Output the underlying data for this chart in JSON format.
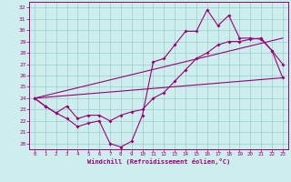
{
  "xlabel": "Windchill (Refroidissement éolien,°C)",
  "xlim": [
    -0.5,
    23.5
  ],
  "ylim": [
    19.5,
    32.5
  ],
  "xticks": [
    0,
    1,
    2,
    3,
    4,
    5,
    6,
    7,
    8,
    9,
    10,
    11,
    12,
    13,
    14,
    15,
    16,
    17,
    18,
    19,
    20,
    21,
    22,
    23
  ],
  "yticks": [
    20,
    21,
    22,
    23,
    24,
    25,
    26,
    27,
    28,
    29,
    30,
    31,
    32
  ],
  "bg_color": "#ceeeed",
  "line_color": "#990077",
  "grid_color": "#99cccc",
  "curve1_x": [
    0,
    1,
    2,
    3,
    4,
    5,
    6,
    7,
    8,
    9,
    10,
    11,
    12,
    13,
    14,
    15,
    16,
    17,
    18,
    19,
    20,
    21,
    22,
    23
  ],
  "curve1_y": [
    24.0,
    23.3,
    22.7,
    22.2,
    21.5,
    21.8,
    22.0,
    20.0,
    19.7,
    20.2,
    22.5,
    27.2,
    27.5,
    28.7,
    29.9,
    29.9,
    31.8,
    30.4,
    31.3,
    29.3,
    29.3,
    29.2,
    28.2,
    27.0
  ],
  "curve2_x": [
    0,
    1,
    2,
    3,
    4,
    5,
    6,
    7,
    8,
    9,
    10,
    11,
    12,
    13,
    14,
    15,
    16,
    17,
    18,
    19,
    20,
    21,
    22,
    23
  ],
  "curve2_y": [
    24.0,
    23.3,
    22.7,
    23.3,
    22.2,
    22.5,
    22.5,
    22.0,
    22.5,
    22.8,
    23.0,
    24.0,
    24.5,
    25.5,
    26.5,
    27.5,
    28.0,
    28.7,
    29.0,
    29.0,
    29.2,
    29.3,
    28.2,
    25.8
  ],
  "curve3_x": [
    0,
    23
  ],
  "curve3_y": [
    24.0,
    25.8
  ],
  "curve4_x": [
    0,
    23
  ],
  "curve4_y": [
    24.0,
    29.3
  ]
}
